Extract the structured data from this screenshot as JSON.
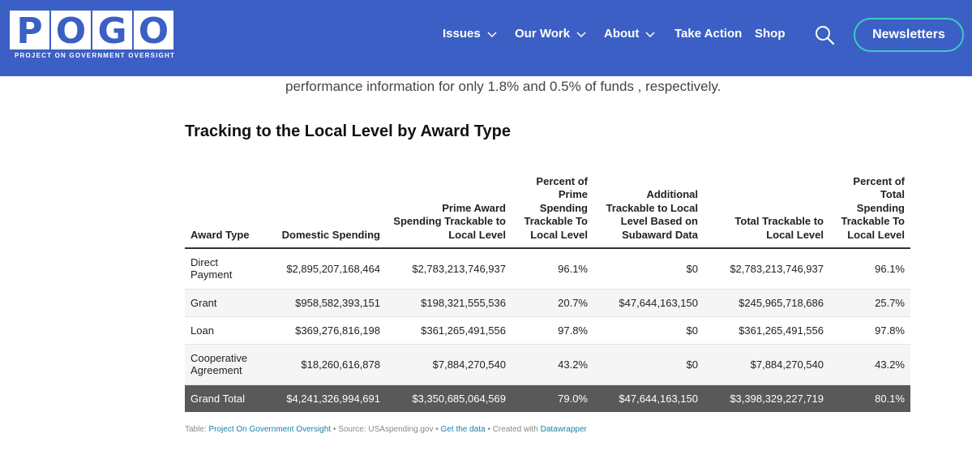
{
  "header": {
    "logo_letters": [
      "P",
      "O",
      "G",
      "O"
    ],
    "logo_tagline": "PROJECT ON GOVERNMENT OVERSIGHT",
    "nav": [
      {
        "label": "Issues",
        "dropdown": true
      },
      {
        "label": "Our Work",
        "dropdown": true
      },
      {
        "label": "About",
        "dropdown": true
      },
      {
        "label": "Take Action",
        "dropdown": false
      },
      {
        "label": "Shop",
        "dropdown": false
      }
    ],
    "search_icon": "search-icon",
    "newsletter_label": "Newsletters",
    "colors": {
      "background": "#3b5fc4",
      "accent": "#3ec9c0"
    }
  },
  "article": {
    "intro_line": "performance information for only 1.8% and 0.5% of funds , respectively."
  },
  "table": {
    "title": "Tracking to the Local Level by Award Type",
    "headers": [
      "Award Type",
      "Domestic Spending",
      "Prime Award Spending Trackable to Local Level",
      "Percent of Prime Spending Trackable To Local Level",
      "Additional Trackable to Local Level Based on Subaward Data",
      "Total Trackable to Local Level",
      "Percent of Total Spending Trackable To Local Level"
    ],
    "rows": [
      [
        "Direct Payment",
        "$2,895,207,168,464",
        "$2,783,213,746,937",
        "96.1%",
        "$0",
        "$2,783,213,746,937",
        "96.1%"
      ],
      [
        "Grant",
        "$958,582,393,151",
        "$198,321,555,536",
        "20.7%",
        "$47,644,163,150",
        "$245,965,718,686",
        "25.7%"
      ],
      [
        "Loan",
        "$369,276,816,198",
        "$361,265,491,556",
        "97.8%",
        "$0",
        "$361,265,491,556",
        "97.8%"
      ],
      [
        "Cooperative Agreement",
        "$18,260,616,878",
        "$7,884,270,540",
        "43.2%",
        "$0",
        "$7,884,270,540",
        "43.2%"
      ]
    ],
    "total_row": [
      "Grand Total",
      "$4,241,326,994,691",
      "$3,350,685,064,569",
      "79.0%",
      "$47,644,163,150",
      "$3,398,329,227,719",
      "80.1%"
    ]
  },
  "footer": {
    "table_label": "Table:",
    "table_link": "Project On Government Oversight",
    "sep1": "•",
    "source_text": "Source: USAspending.gov",
    "sep2": "•",
    "data_link": "Get the data",
    "sep3": "•",
    "created_text": "Created with",
    "dw_link": "Datawrapper"
  }
}
